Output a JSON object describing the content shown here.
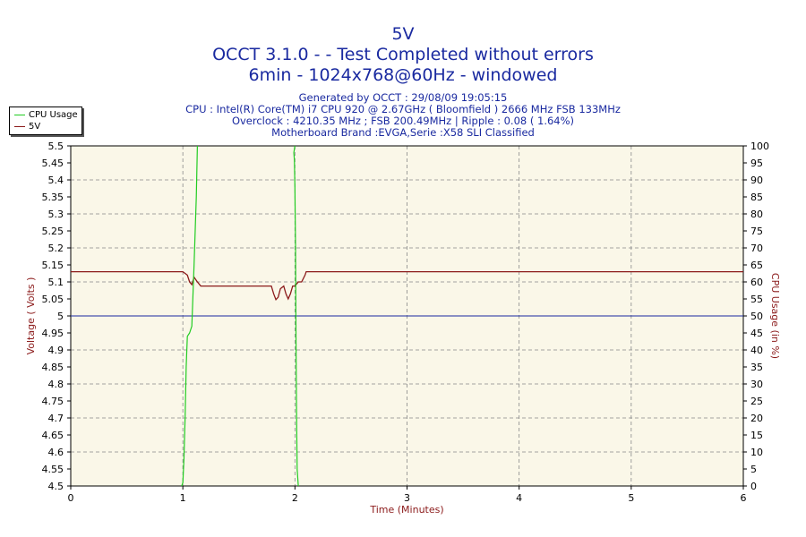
{
  "header": {
    "title": "5V",
    "subtitle1": "OCCT 3.1.0 -  - Test Completed without errors",
    "subtitle2": "6min - 1024x768@60Hz - windowed",
    "info": [
      "Generated by OCCT : 29/08/09 19:05:15",
      "CPU : Intel(R) Core(TM) i7 CPU 920 @ 2.67GHz ( Bloomfield ) 2666 MHz FSB 133MHz",
      "Overclock : 4210.35 MHz ; FSB 200.49MHz | Ripple : 0.08 ( 1.64%)",
      "Motherboard Brand :EVGA,Serie :X58 SLI Classified"
    ]
  },
  "legend": {
    "items": [
      {
        "label": "CPU Usage",
        "color": "#22cc22"
      },
      {
        "label": "5V",
        "color": "#8b1a1a"
      }
    ]
  },
  "chart_data": {
    "type": "line",
    "xlabel": "Time (Minutes)",
    "ylabel": "Voltage ( Volts )",
    "y2label": "CPU Usage (in %)",
    "xlim": [
      0,
      6
    ],
    "ylim": [
      4.5,
      5.5
    ],
    "y2lim": [
      0,
      100
    ],
    "x_ticks": [
      "0",
      "1",
      "2",
      "3",
      "4",
      "5",
      "6"
    ],
    "y_ticks": [
      "4.5",
      "4.55",
      "4.6",
      "4.65",
      "4.7",
      "4.75",
      "4.8",
      "4.85",
      "4.9",
      "4.95",
      "5",
      "5.05",
      "5.1",
      "5.15",
      "5.2",
      "5.25",
      "5.3",
      "5.35",
      "5.4",
      "5.45",
      "5.5"
    ],
    "y2_ticks": [
      "0",
      "5",
      "10",
      "15",
      "20",
      "25",
      "30",
      "35",
      "40",
      "45",
      "50",
      "55",
      "60",
      "65",
      "70",
      "75",
      "80",
      "85",
      "90",
      "95",
      "100"
    ],
    "reference_line": {
      "y": 5.0,
      "color": "#1a2aa0"
    },
    "grid": true,
    "legend_position": "top-left",
    "series": [
      {
        "name": "5V",
        "axis": "left",
        "color": "#8b1a1a",
        "points": [
          [
            0,
            5.13
          ],
          [
            1.0,
            5.13
          ],
          [
            1.04,
            5.12
          ],
          [
            1.06,
            5.1
          ],
          [
            1.08,
            5.092
          ],
          [
            1.1,
            5.114
          ],
          [
            1.13,
            5.1
          ],
          [
            1.16,
            5.088
          ],
          [
            1.2,
            5.088
          ],
          [
            1.4,
            5.088
          ],
          [
            1.6,
            5.088
          ],
          [
            1.79,
            5.088
          ],
          [
            1.81,
            5.065
          ],
          [
            1.83,
            5.048
          ],
          [
            1.85,
            5.055
          ],
          [
            1.87,
            5.08
          ],
          [
            1.9,
            5.088
          ],
          [
            1.92,
            5.065
          ],
          [
            1.94,
            5.05
          ],
          [
            1.96,
            5.065
          ],
          [
            1.98,
            5.088
          ],
          [
            2.0,
            5.088
          ],
          [
            2.03,
            5.1
          ],
          [
            2.06,
            5.1
          ],
          [
            2.09,
            5.12
          ],
          [
            2.1,
            5.13
          ],
          [
            3,
            5.13
          ],
          [
            4,
            5.13
          ],
          [
            5,
            5.13
          ],
          [
            6,
            5.13
          ]
        ]
      },
      {
        "name": "CPU Usage",
        "axis": "right",
        "color": "#22cc22",
        "segments": [
          [
            [
              0.99,
              0
            ],
            [
              1.0,
              1
            ],
            [
              1.01,
              8
            ],
            [
              1.02,
              20
            ],
            [
              1.03,
              35
            ],
            [
              1.04,
              44
            ],
            [
              1.06,
              45
            ],
            [
              1.08,
              47
            ],
            [
              1.1,
              65
            ],
            [
              1.12,
              85
            ],
            [
              1.13,
              100
            ]
          ],
          [
            [
              2.0,
              100
            ],
            [
              1.99,
              98
            ],
            [
              1.995,
              96
            ],
            [
              2.0,
              88
            ],
            [
              2.005,
              70
            ],
            [
              2.01,
              40
            ],
            [
              2.015,
              20
            ],
            [
              2.02,
              5
            ],
            [
              2.03,
              0
            ]
          ]
        ]
      }
    ]
  }
}
